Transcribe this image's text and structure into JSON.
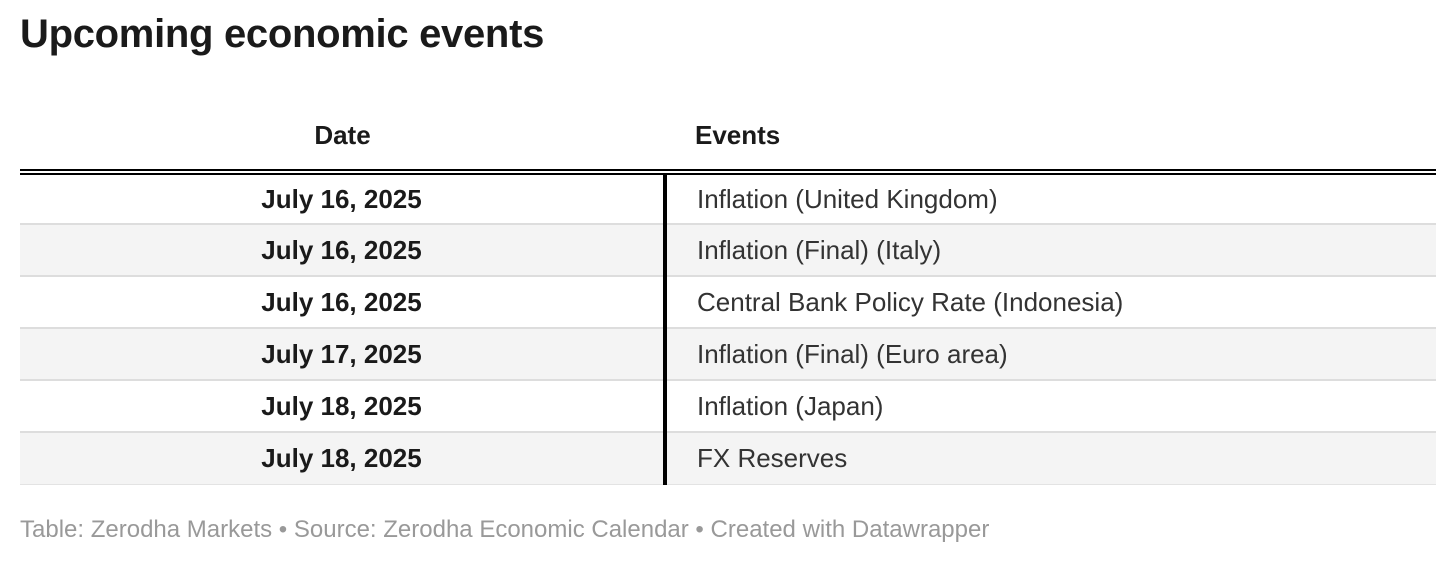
{
  "chart_data": {
    "type": "table",
    "title": "Upcoming economic events",
    "columns": [
      "Date",
      "Events"
    ],
    "rows": [
      [
        "July 16, 2025",
        "Inflation (United Kingdom)"
      ],
      [
        "July 16, 2025",
        "Inflation (Final) (Italy)"
      ],
      [
        "July 16, 2025",
        "Central Bank Policy Rate (Indonesia)"
      ],
      [
        "July 17, 2025",
        "Inflation (Final) (Euro area)"
      ],
      [
        "July 18, 2025",
        "Inflation (Japan)"
      ],
      [
        "July 18, 2025",
        "FX Reserves"
      ]
    ],
    "layout_hints": {
      "date_column_style": "bold, centered",
      "events_column_style": "regular, left-aligned",
      "zebra_striping": true,
      "header_border": "double black line",
      "column_divider": "thick black vertical rule"
    }
  },
  "footer": {
    "table_label": "Table: ",
    "table_credit": "Zerodha Markets",
    "separator_1": " • ",
    "source_label": "Source: ",
    "source_credit": "Zerodha Economic Calendar",
    "separator_2": " • ",
    "created_label": "Created with ",
    "created_credit": "Datawrapper"
  },
  "colors": {
    "title_text": "#1a1a1a",
    "body_text": "#333333",
    "alt_row_background": "#f4f4f4",
    "row_separator": "#dddddd",
    "divider_black": "#000000",
    "footer_text": "#999999",
    "page_background": "#ffffff"
  }
}
